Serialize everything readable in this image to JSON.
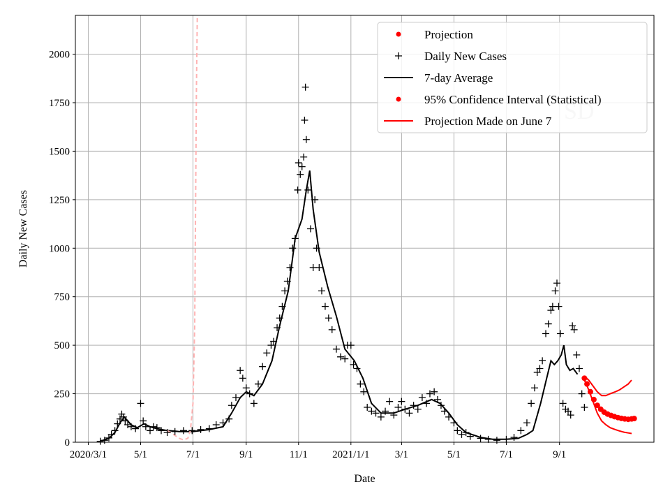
{
  "chart_data": {
    "type": "line",
    "xlabel": "Date",
    "ylabel": "Daily New Cases",
    "xlim": [
      "2020-02-15",
      "2021-12-20"
    ],
    "ylim": [
      0,
      2200
    ],
    "grid": true,
    "legend_position": "top-right",
    "watermark": "SD",
    "x_ticks": [
      {
        "date": "2020-03-01",
        "label": "2020/3/1"
      },
      {
        "date": "2020-05-01",
        "label": "5/1"
      },
      {
        "date": "2020-07-01",
        "label": "7/1"
      },
      {
        "date": "2020-09-01",
        "label": "9/1"
      },
      {
        "date": "2020-11-01",
        "label": "11/1"
      },
      {
        "date": "2021-01-01",
        "label": "2021/1/1"
      },
      {
        "date": "2021-03-01",
        "label": "3/1"
      },
      {
        "date": "2021-05-01",
        "label": "5/1"
      },
      {
        "date": "2021-07-01",
        "label": "7/1"
      },
      {
        "date": "2021-09-01",
        "label": "9/1"
      }
    ],
    "y_ticks": [
      {
        "value": 0,
        "label": "0"
      },
      {
        "value": 250,
        "label": "250"
      },
      {
        "value": 500,
        "label": "500"
      },
      {
        "value": 750,
        "label": "750"
      },
      {
        "value": 1000,
        "label": "1000"
      },
      {
        "value": 1250,
        "label": "1250"
      },
      {
        "value": 1500,
        "label": "1500"
      },
      {
        "value": 1750,
        "label": "1750"
      },
      {
        "value": 2000,
        "label": "2000"
      }
    ],
    "legend": [
      {
        "label": "Projection",
        "marker": "dot",
        "color": "#ff0000"
      },
      {
        "label": "Daily New Cases",
        "marker": "plus",
        "color": "#000000"
      },
      {
        "label": "7-day Average",
        "marker": "line",
        "color": "#000000"
      },
      {
        "label": "95% Confidence Interval (Statistical)",
        "marker": "dot",
        "color": "#ff0000"
      },
      {
        "label": "Projection Made on June 7",
        "marker": "line",
        "color": "#ff0000"
      }
    ],
    "series": [
      {
        "name": "Daily New Cases",
        "style": "plus",
        "color": "#000000",
        "points": [
          [
            "2020-03-15",
            5
          ],
          [
            "2020-03-20",
            10
          ],
          [
            "2020-03-25",
            22
          ],
          [
            "2020-03-28",
            40
          ],
          [
            "2020-04-01",
            60
          ],
          [
            "2020-04-04",
            95
          ],
          [
            "2020-04-07",
            120
          ],
          [
            "2020-04-09",
            145
          ],
          [
            "2020-04-11",
            130
          ],
          [
            "2020-04-13",
            110
          ],
          [
            "2020-04-16",
            90
          ],
          [
            "2020-04-20",
            80
          ],
          [
            "2020-04-25",
            70
          ],
          [
            "2020-05-01",
            200
          ],
          [
            "2020-05-04",
            110
          ],
          [
            "2020-05-07",
            80
          ],
          [
            "2020-05-12",
            60
          ],
          [
            "2020-05-16",
            80
          ],
          [
            "2020-05-20",
            75
          ],
          [
            "2020-05-25",
            60
          ],
          [
            "2020-06-01",
            50
          ],
          [
            "2020-06-10",
            55
          ],
          [
            "2020-06-20",
            60
          ],
          [
            "2020-06-30",
            60
          ],
          [
            "2020-07-10",
            65
          ],
          [
            "2020-07-20",
            70
          ],
          [
            "2020-07-28",
            90
          ],
          [
            "2020-08-05",
            100
          ],
          [
            "2020-08-12",
            120
          ],
          [
            "2020-08-15",
            190
          ],
          [
            "2020-08-20",
            230
          ],
          [
            "2020-08-25",
            370
          ],
          [
            "2020-08-28",
            330
          ],
          [
            "2020-09-01",
            280
          ],
          [
            "2020-09-05",
            250
          ],
          [
            "2020-09-10",
            200
          ],
          [
            "2020-09-15",
            300
          ],
          [
            "2020-09-20",
            390
          ],
          [
            "2020-09-25",
            460
          ],
          [
            "2020-09-30",
            500
          ],
          [
            "2020-10-03",
            520
          ],
          [
            "2020-10-07",
            590
          ],
          [
            "2020-10-10",
            640
          ],
          [
            "2020-10-13",
            700
          ],
          [
            "2020-10-16",
            780
          ],
          [
            "2020-10-19",
            830
          ],
          [
            "2020-10-22",
            900
          ],
          [
            "2020-10-25",
            1000
          ],
          [
            "2020-10-28",
            1050
          ],
          [
            "2020-10-31",
            1300
          ],
          [
            "2020-11-01",
            1440
          ],
          [
            "2020-11-03",
            1380
          ],
          [
            "2020-11-05",
            1420
          ],
          [
            "2020-11-07",
            1470
          ],
          [
            "2020-11-08",
            1660
          ],
          [
            "2020-11-09",
            1830
          ],
          [
            "2020-11-10",
            1560
          ],
          [
            "2020-11-12",
            1300
          ],
          [
            "2020-11-15",
            1100
          ],
          [
            "2020-11-18",
            900
          ],
          [
            "2020-11-20",
            1250
          ],
          [
            "2020-11-22",
            1000
          ],
          [
            "2020-11-25",
            900
          ],
          [
            "2020-11-28",
            780
          ],
          [
            "2020-12-02",
            700
          ],
          [
            "2020-12-06",
            640
          ],
          [
            "2020-12-10",
            580
          ],
          [
            "2020-12-15",
            480
          ],
          [
            "2020-12-20",
            440
          ],
          [
            "2020-12-25",
            430
          ],
          [
            "2020-12-28",
            500
          ],
          [
            "2021-01-01",
            500
          ],
          [
            "2021-01-04",
            400
          ],
          [
            "2021-01-08",
            380
          ],
          [
            "2021-01-12",
            300
          ],
          [
            "2021-01-16",
            260
          ],
          [
            "2021-01-20",
            180
          ],
          [
            "2021-01-25",
            160
          ],
          [
            "2021-01-30",
            150
          ],
          [
            "2021-02-05",
            130
          ],
          [
            "2021-02-10",
            160
          ],
          [
            "2021-02-15",
            210
          ],
          [
            "2021-02-20",
            140
          ],
          [
            "2021-02-25",
            180
          ],
          [
            "2021-03-01",
            210
          ],
          [
            "2021-03-05",
            170
          ],
          [
            "2021-03-10",
            150
          ],
          [
            "2021-03-15",
            190
          ],
          [
            "2021-03-20",
            170
          ],
          [
            "2021-03-25",
            230
          ],
          [
            "2021-03-30",
            200
          ],
          [
            "2021-04-03",
            250
          ],
          [
            "2021-04-08",
            260
          ],
          [
            "2021-04-12",
            220
          ],
          [
            "2021-04-16",
            190
          ],
          [
            "2021-04-20",
            160
          ],
          [
            "2021-04-25",
            130
          ],
          [
            "2021-05-01",
            100
          ],
          [
            "2021-05-05",
            60
          ],
          [
            "2021-05-10",
            40
          ],
          [
            "2021-05-15",
            50
          ],
          [
            "2021-05-20",
            30
          ],
          [
            "2021-06-01",
            20
          ],
          [
            "2021-06-10",
            15
          ],
          [
            "2021-06-20",
            10
          ],
          [
            "2021-07-01",
            15
          ],
          [
            "2021-07-10",
            25
          ],
          [
            "2021-07-18",
            60
          ],
          [
            "2021-07-25",
            100
          ],
          [
            "2021-07-30",
            200
          ],
          [
            "2021-08-03",
            280
          ],
          [
            "2021-08-06",
            360
          ],
          [
            "2021-08-09",
            380
          ],
          [
            "2021-08-12",
            420
          ],
          [
            "2021-08-16",
            560
          ],
          [
            "2021-08-19",
            610
          ],
          [
            "2021-08-22",
            680
          ],
          [
            "2021-08-24",
            700
          ],
          [
            "2021-08-27",
            780
          ],
          [
            "2021-08-29",
            820
          ],
          [
            "2021-08-31",
            700
          ],
          [
            "2021-09-02",
            560
          ],
          [
            "2021-09-05",
            200
          ],
          [
            "2021-09-08",
            170
          ],
          [
            "2021-09-11",
            160
          ],
          [
            "2021-09-14",
            140
          ],
          [
            "2021-09-16",
            600
          ],
          [
            "2021-09-18",
            580
          ],
          [
            "2021-09-21",
            450
          ],
          [
            "2021-09-24",
            380
          ],
          [
            "2021-09-27",
            250
          ],
          [
            "2021-09-30",
            180
          ]
        ]
      },
      {
        "name": "7-day Average",
        "style": "line",
        "color": "#000000",
        "points": [
          [
            "2020-03-15",
            5
          ],
          [
            "2020-03-25",
            20
          ],
          [
            "2020-04-01",
            50
          ],
          [
            "2020-04-07",
            100
          ],
          [
            "2020-04-12",
            130
          ],
          [
            "2020-04-20",
            90
          ],
          [
            "2020-04-27",
            75
          ],
          [
            "2020-05-05",
            95
          ],
          [
            "2020-05-12",
            80
          ],
          [
            "2020-05-20",
            70
          ],
          [
            "2020-06-01",
            60
          ],
          [
            "2020-06-15",
            55
          ],
          [
            "2020-07-01",
            55
          ],
          [
            "2020-07-20",
            65
          ],
          [
            "2020-08-05",
            80
          ],
          [
            "2020-08-15",
            150
          ],
          [
            "2020-08-25",
            230
          ],
          [
            "2020-09-01",
            260
          ],
          [
            "2020-09-10",
            240
          ],
          [
            "2020-09-20",
            300
          ],
          [
            "2020-10-01",
            420
          ],
          [
            "2020-10-10",
            600
          ],
          [
            "2020-10-20",
            780
          ],
          [
            "2020-10-28",
            1050
          ],
          [
            "2020-11-05",
            1150
          ],
          [
            "2020-11-10",
            1300
          ],
          [
            "2020-11-14",
            1400
          ],
          [
            "2020-11-18",
            1200
          ],
          [
            "2020-11-25",
            980
          ],
          [
            "2020-12-05",
            800
          ],
          [
            "2020-12-15",
            650
          ],
          [
            "2020-12-25",
            480
          ],
          [
            "2021-01-05",
            420
          ],
          [
            "2021-01-15",
            330
          ],
          [
            "2021-01-25",
            200
          ],
          [
            "2021-02-05",
            150
          ],
          [
            "2021-02-20",
            150
          ],
          [
            "2021-03-05",
            170
          ],
          [
            "2021-03-20",
            190
          ],
          [
            "2021-04-05",
            220
          ],
          [
            "2021-04-15",
            200
          ],
          [
            "2021-04-25",
            150
          ],
          [
            "2021-05-05",
            90
          ],
          [
            "2021-05-15",
            50
          ],
          [
            "2021-06-01",
            25
          ],
          [
            "2021-06-15",
            15
          ],
          [
            "2021-07-01",
            15
          ],
          [
            "2021-07-15",
            20
          ],
          [
            "2021-07-25",
            40
          ],
          [
            "2021-08-01",
            60
          ],
          [
            "2021-08-10",
            200
          ],
          [
            "2021-08-17",
            330
          ],
          [
            "2021-08-22",
            420
          ],
          [
            "2021-08-26",
            400
          ],
          [
            "2021-08-30",
            420
          ],
          [
            "2021-09-03",
            450
          ],
          [
            "2021-09-06",
            500
          ],
          [
            "2021-09-09",
            400
          ],
          [
            "2021-09-13",
            370
          ],
          [
            "2021-09-17",
            380
          ],
          [
            "2021-09-22",
            350
          ]
        ]
      },
      {
        "name": "Projection",
        "style": "dots",
        "color": "#ff0000",
        "points": [
          [
            "2021-09-30",
            330
          ],
          [
            "2021-10-03",
            300
          ],
          [
            "2021-10-07",
            260
          ],
          [
            "2021-10-11",
            220
          ],
          [
            "2021-10-15",
            190
          ],
          [
            "2021-10-19",
            170
          ],
          [
            "2021-10-23",
            155
          ],
          [
            "2021-10-27",
            145
          ],
          [
            "2021-10-31",
            138
          ],
          [
            "2021-11-04",
            132
          ],
          [
            "2021-11-08",
            127
          ],
          [
            "2021-11-12",
            123
          ],
          [
            "2021-11-16",
            120
          ],
          [
            "2021-11-20",
            118
          ],
          [
            "2021-11-24",
            120
          ],
          [
            "2021-11-27",
            122
          ]
        ]
      },
      {
        "name": "95% Confidence Interval (Statistical)",
        "style": "band",
        "color": "#ff0000",
        "upper": [
          [
            "2021-09-30",
            340
          ],
          [
            "2021-10-05",
            320
          ],
          [
            "2021-10-10",
            290
          ],
          [
            "2021-10-15",
            260
          ],
          [
            "2021-10-20",
            240
          ],
          [
            "2021-10-25",
            240
          ],
          [
            "2021-10-30",
            250
          ],
          [
            "2021-11-05",
            260
          ],
          [
            "2021-11-10",
            270
          ],
          [
            "2021-11-15",
            285
          ],
          [
            "2021-11-20",
            300
          ],
          [
            "2021-11-24",
            320
          ]
        ],
        "lower": [
          [
            "2021-09-30",
            320
          ],
          [
            "2021-10-05",
            270
          ],
          [
            "2021-10-10",
            210
          ],
          [
            "2021-10-15",
            150
          ],
          [
            "2021-10-20",
            110
          ],
          [
            "2021-10-25",
            90
          ],
          [
            "2021-10-30",
            75
          ],
          [
            "2021-11-05",
            65
          ],
          [
            "2021-11-10",
            58
          ],
          [
            "2021-11-15",
            52
          ],
          [
            "2021-11-20",
            48
          ],
          [
            "2021-11-24",
            45
          ]
        ]
      },
      {
        "name": "Projection Made on June 7",
        "style": "dashed",
        "color": "#ffb3b3",
        "points": [
          [
            "2020-06-01",
            60
          ],
          [
            "2020-06-05",
            50
          ],
          [
            "2020-06-10",
            35
          ],
          [
            "2020-06-15",
            20
          ],
          [
            "2020-06-20",
            12
          ],
          [
            "2020-06-25",
            20
          ],
          [
            "2020-06-28",
            60
          ],
          [
            "2020-07-01",
            200
          ],
          [
            "2020-07-03",
            600
          ],
          [
            "2020-07-04",
            1200
          ],
          [
            "2020-07-05",
            1800
          ],
          [
            "2020-07-06",
            2200
          ]
        ]
      }
    ]
  }
}
